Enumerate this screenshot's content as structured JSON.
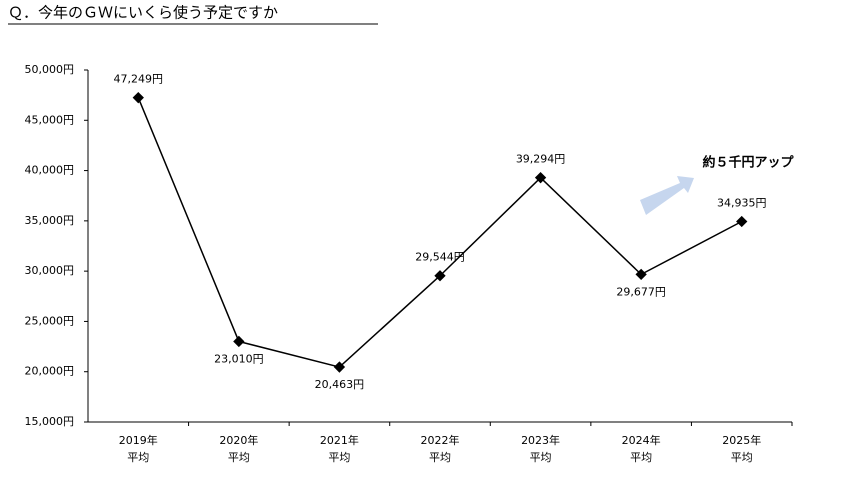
{
  "chart_data": {
    "type": "line",
    "title": "Ｑ．今年のＧＷにいくら使う予定ですか",
    "categories": [
      "2019年\n平均",
      "2020年\n平均",
      "2021年\n平均",
      "2022年\n平均",
      "2023年\n平均",
      "2024年\n平均",
      "2025年\n平均"
    ],
    "series": [
      {
        "name": "平均",
        "color": "#000000",
        "values": [
          47249,
          23010,
          20463,
          29544,
          39294,
          29677,
          34935
        ],
        "value_labels": [
          "47,249円",
          "23,010円",
          "20,463円",
          "29,544円",
          "39,294円",
          "29,677円",
          "34,935円"
        ]
      }
    ],
    "ylim": [
      15000,
      50000
    ],
    "yticks": [
      {
        "value": 15000,
        "label": "15,000円"
      },
      {
        "value": 20000,
        "label": "20,000円"
      },
      {
        "value": 25000,
        "label": "25,000円"
      },
      {
        "value": 30000,
        "label": "30,000円"
      },
      {
        "value": 35000,
        "label": "35,000円"
      },
      {
        "value": 40000,
        "label": "40,000円"
      },
      {
        "value": 45000,
        "label": "45,000円"
      },
      {
        "value": 50000,
        "label": "50,000円"
      }
    ],
    "annotation": "約５千円アップ",
    "annotation_color": "#4472c4"
  }
}
